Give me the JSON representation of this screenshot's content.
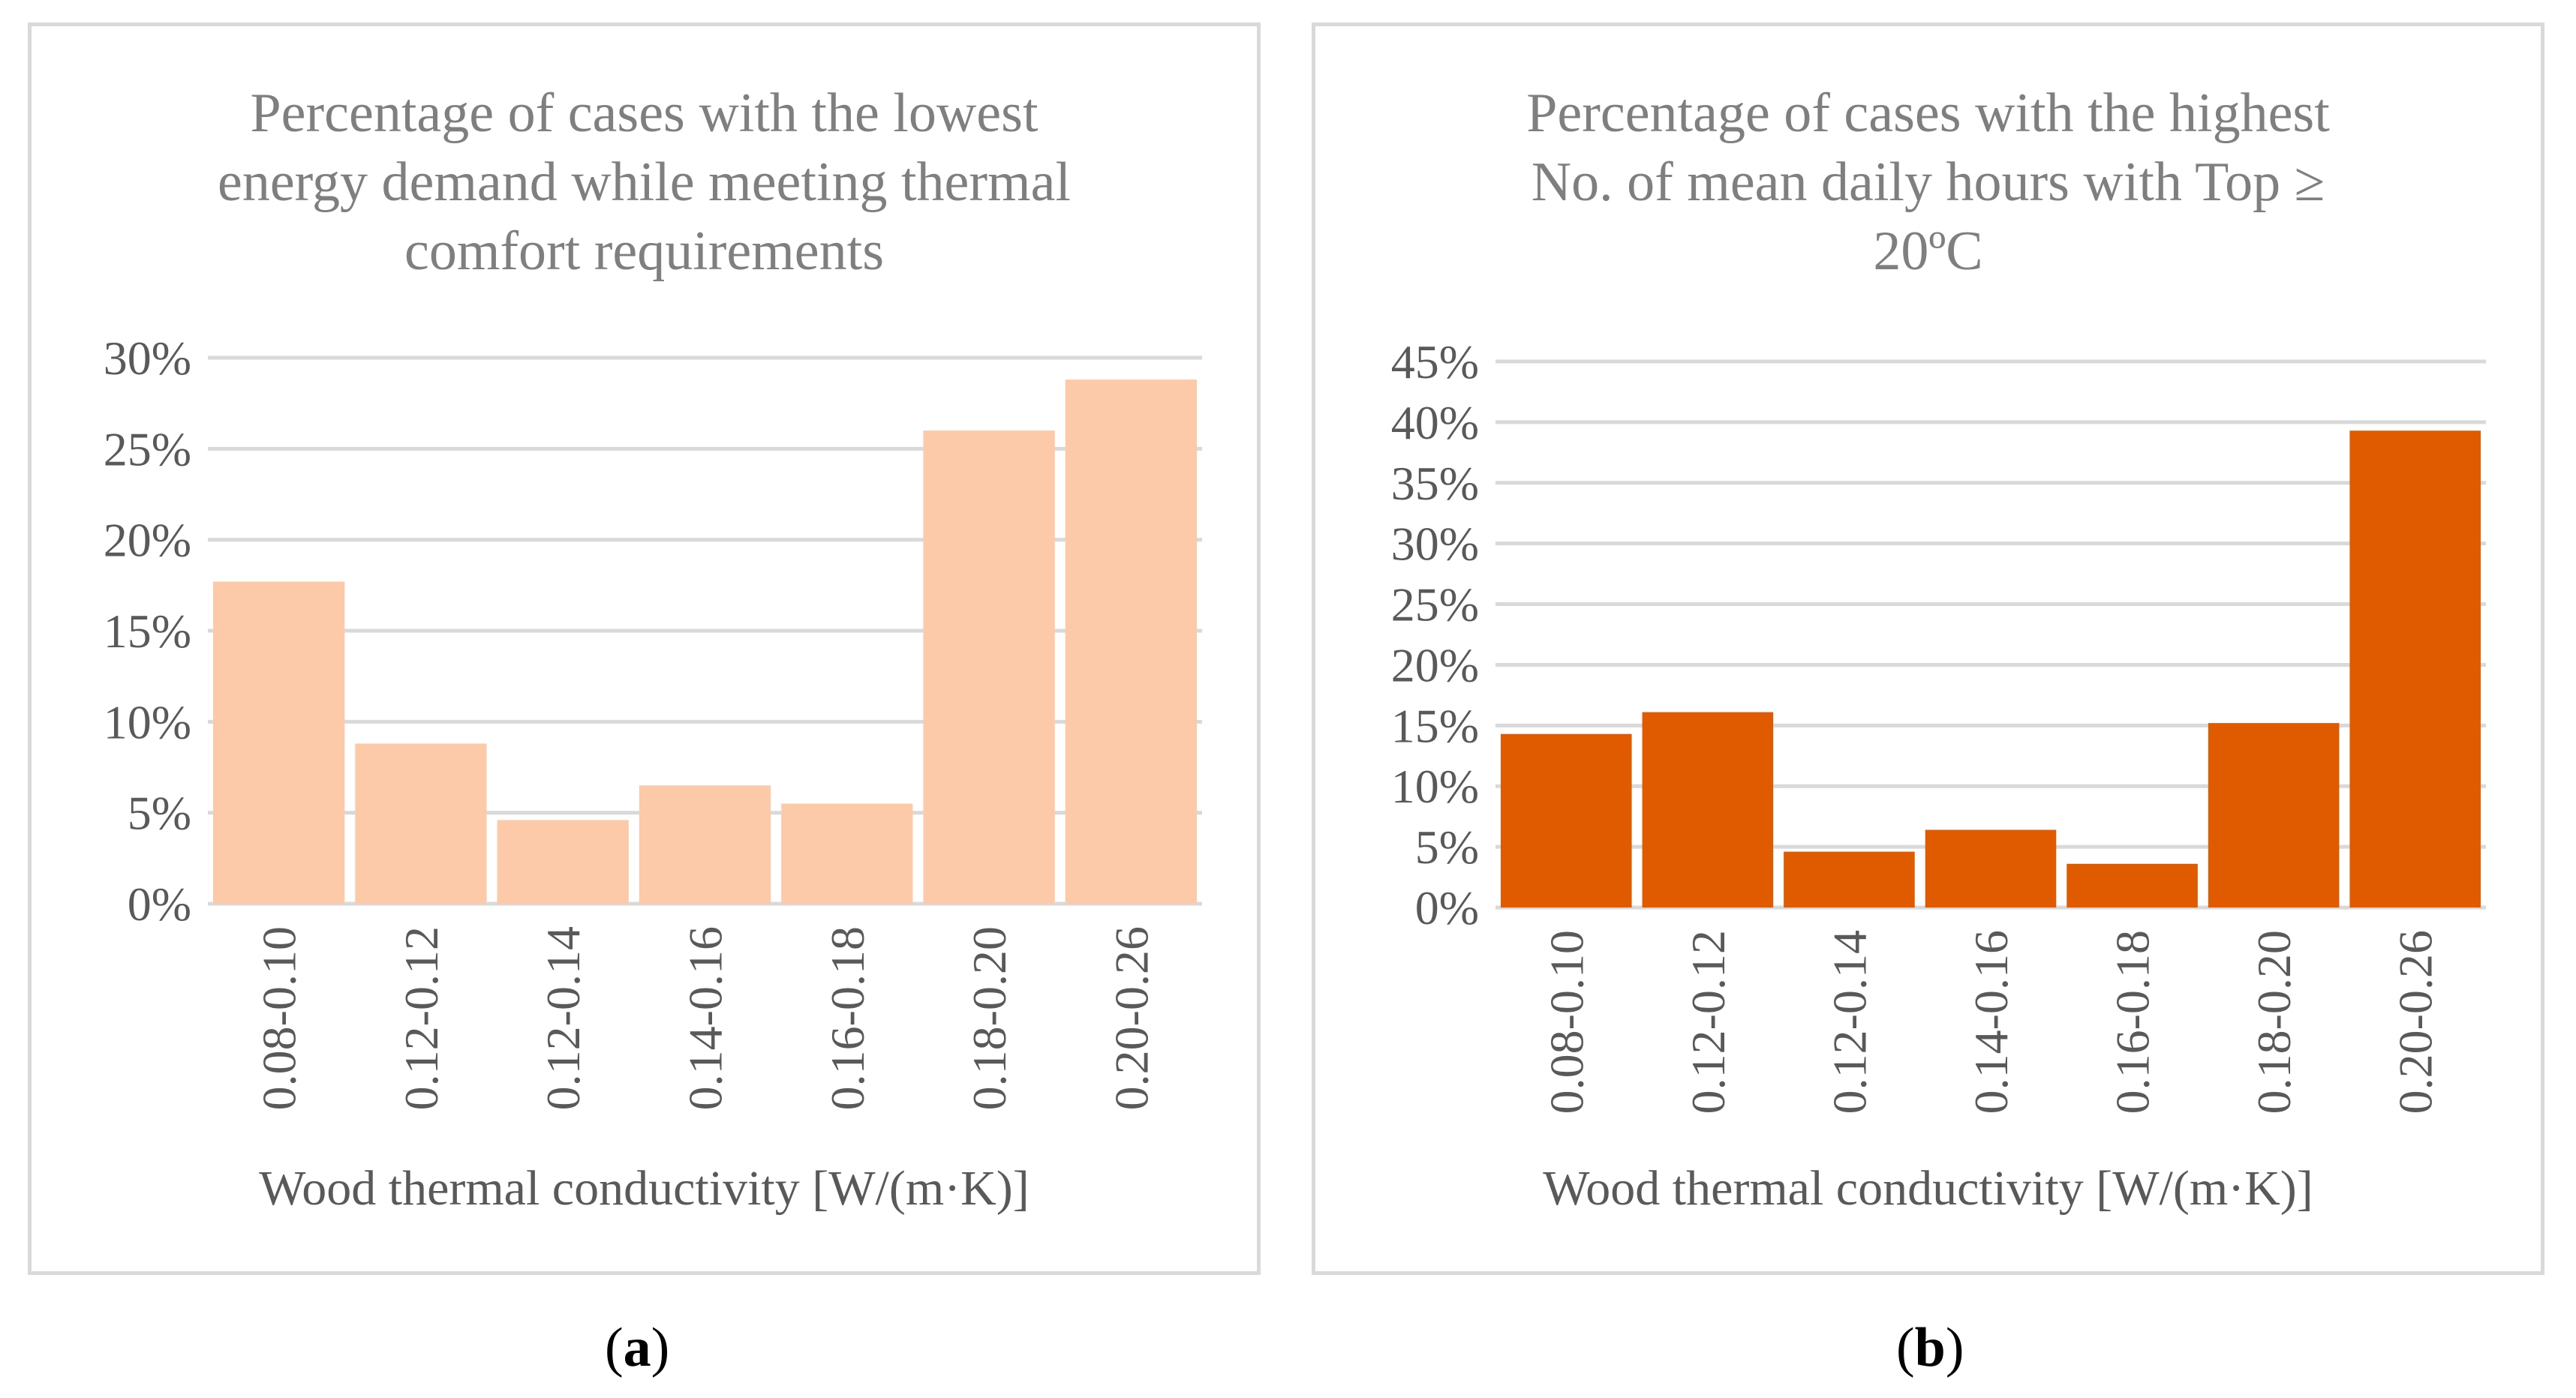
{
  "figure": {
    "caption_a": "a",
    "caption_b": "b"
  },
  "chart_data": [
    {
      "type": "bar",
      "title": "Percentage of cases with the lowest energy demand while meeting thermal comfort requirements",
      "title_lines": [
        "Percentage of cases with the lowest",
        "energy demand while meeting thermal",
        "comfort requirements"
      ],
      "categories": [
        "0.08-0.10",
        "0.12-0.12",
        "0.12-0.14",
        "0.14-0.16",
        "0.16-0.18",
        "0.18-0.20",
        "0.20-0.26"
      ],
      "values": [
        17.7,
        8.8,
        4.6,
        6.5,
        5.5,
        26.0,
        28.8
      ],
      "yticks": [
        "0%",
        "5%",
        "10%",
        "15%",
        "20%",
        "25%",
        "30%"
      ],
      "ylim": [
        0,
        30
      ],
      "xlabel": "Wood thermal conductivity [W/(m·K)]",
      "ylabel": "",
      "bar_color": "#fdcaa9",
      "grid": true
    },
    {
      "type": "bar",
      "title": "Percentage of cases with the highest No. of mean daily hours with Top ≥ 20ºC",
      "title_lines": [
        "Percentage of cases with the highest",
        "No. of mean daily hours with Top ≥",
        "20ºC"
      ],
      "categories": [
        "0.08-0.10",
        "0.12-0.12",
        "0.12-0.14",
        "0.14-0.16",
        "0.16-0.18",
        "0.18-0.20",
        "0.20-0.26"
      ],
      "values": [
        14.3,
        16.1,
        4.6,
        6.4,
        3.6,
        15.2,
        39.3
      ],
      "yticks": [
        "0%",
        "5%",
        "10%",
        "15%",
        "20%",
        "25%",
        "30%",
        "35%",
        "40%",
        "45%"
      ],
      "ylim": [
        0,
        45
      ],
      "xlabel": "Wood thermal conductivity [W/(m·K)]",
      "ylabel": "",
      "bar_color": "#e05a00",
      "grid": true
    }
  ]
}
